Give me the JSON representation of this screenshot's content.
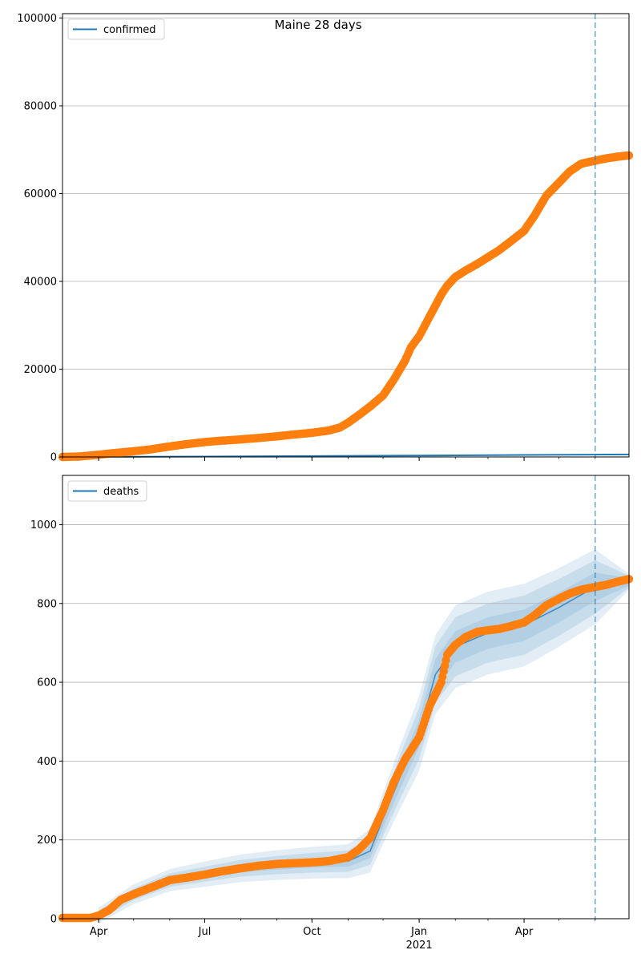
{
  "title": "Maine 28 days",
  "colors": {
    "observed": "#ff7f0e",
    "model": "#1f77b4",
    "band": "#1f77b4",
    "grid": "#b0b0b0",
    "vline": "#1f77b4"
  },
  "x_ticks": [
    {
      "date": "2020-04-01",
      "label": "Apr"
    },
    {
      "date": "2020-07-01",
      "label": "Jul"
    },
    {
      "date": "2020-10-01",
      "label": "Oct"
    },
    {
      "date": "2021-01-01",
      "label": "Jan"
    },
    {
      "date": "2021-04-01",
      "label": "Apr"
    }
  ],
  "x_year_label": "2021",
  "chart_data": [
    {
      "type": "line",
      "legend": [
        "confirmed"
      ],
      "legend_position": "top-left",
      "grid": "y",
      "xlim": [
        "2020-03-01",
        "2021-06-30"
      ],
      "ylim": [
        0,
        101000
      ],
      "yticks": [
        0,
        20000,
        40000,
        60000,
        80000,
        100000
      ],
      "vline": "2021-06-01",
      "series": [
        {
          "name": "confirmed",
          "role": "model",
          "x": [
            "2020-03-01",
            "2020-07-01",
            "2020-10-01",
            "2021-01-01",
            "2021-04-01",
            "2021-06-30"
          ],
          "y": [
            0,
            100,
            200,
            330,
            460,
            560
          ]
        },
        {
          "role": "observed",
          "x": [
            "2020-03-01",
            "2020-03-15",
            "2020-04-01",
            "2020-04-15",
            "2020-05-01",
            "2020-05-15",
            "2020-06-01",
            "2020-06-15",
            "2020-07-01",
            "2020-07-15",
            "2020-08-01",
            "2020-08-15",
            "2020-09-01",
            "2020-09-15",
            "2020-10-01",
            "2020-10-15",
            "2020-10-25",
            "2020-11-01",
            "2020-11-10",
            "2020-11-20",
            "2020-12-01",
            "2020-12-10",
            "2020-12-20",
            "2020-12-25",
            "2021-01-01",
            "2021-01-10",
            "2021-01-20",
            "2021-01-25",
            "2021-02-01",
            "2021-02-10",
            "2021-02-20",
            "2021-03-01",
            "2021-03-10",
            "2021-03-20",
            "2021-04-01",
            "2021-04-10",
            "2021-04-20",
            "2021-05-01",
            "2021-05-10",
            "2021-05-20",
            "2021-06-01",
            "2021-06-10",
            "2021-06-20",
            "2021-06-30"
          ],
          "y": [
            0,
            100,
            500,
            900,
            1300,
            1700,
            2400,
            2900,
            3400,
            3700,
            4000,
            4300,
            4700,
            5100,
            5500,
            6000,
            6700,
            7800,
            9500,
            11500,
            14000,
            17500,
            22000,
            25000,
            27500,
            32000,
            37000,
            39000,
            41000,
            42500,
            44000,
            45500,
            47000,
            49000,
            51500,
            55000,
            59500,
            62500,
            65000,
            66800,
            67500,
            68000,
            68400,
            68700
          ]
        }
      ]
    },
    {
      "type": "line",
      "legend": [
        "deaths"
      ],
      "legend_position": "top-left",
      "grid": "y",
      "xlim": [
        "2020-03-01",
        "2021-06-30"
      ],
      "ylim": [
        0,
        1125
      ],
      "yticks": [
        0,
        200,
        400,
        600,
        800,
        1000
      ],
      "vline": "2021-06-01",
      "bands": {
        "x": [
          "2020-04-01",
          "2020-05-01",
          "2020-06-01",
          "2020-07-01",
          "2020-08-01",
          "2020-09-01",
          "2020-10-01",
          "2020-11-01",
          "2020-11-20",
          "2020-12-01",
          "2020-12-15",
          "2021-01-01",
          "2021-01-15",
          "2021-02-01",
          "2021-03-01",
          "2021-04-01",
          "2021-05-01",
          "2021-06-01",
          "2021-06-30"
        ],
        "center": [
          8,
          62,
          98,
          113,
          128,
          136,
          142,
          146,
          172,
          255,
          355,
          470,
          620,
          690,
          725,
          745,
          790,
          842,
          855
        ],
        "inner": [
          6,
          7,
          8,
          9,
          10,
          11,
          12,
          14,
          18,
          25,
          30,
          35,
          40,
          40,
          40,
          40,
          38,
          36,
          10
        ],
        "middle": [
          12,
          15,
          17,
          19,
          21,
          23,
          25,
          27,
          35,
          45,
          55,
          65,
          72,
          75,
          75,
          75,
          72,
          68,
          15
        ],
        "outer": [
          20,
          25,
          28,
          32,
          35,
          38,
          40,
          43,
          55,
          65,
          80,
          95,
          100,
          105,
          105,
          105,
          100,
          95,
          20
        ]
      },
      "series": [
        {
          "role": "observed",
          "x": [
            "2020-03-01",
            "2020-03-15",
            "2020-03-25",
            "2020-04-01",
            "2020-04-10",
            "2020-04-20",
            "2020-05-01",
            "2020-05-15",
            "2020-06-01",
            "2020-06-15",
            "2020-07-01",
            "2020-07-15",
            "2020-08-01",
            "2020-08-15",
            "2020-09-01",
            "2020-09-15",
            "2020-10-01",
            "2020-10-15",
            "2020-11-01",
            "2020-11-10",
            "2020-11-20",
            "2020-12-01",
            "2020-12-10",
            "2020-12-20",
            "2021-01-01",
            "2021-01-10",
            "2021-01-20",
            "2021-01-25",
            "2021-02-01",
            "2021-02-10",
            "2021-02-20",
            "2021-03-01",
            "2021-03-10",
            "2021-03-20",
            "2021-04-01",
            "2021-04-10",
            "2021-04-20",
            "2021-05-01",
            "2021-05-10",
            "2021-05-20",
            "2021-06-01",
            "2021-06-10",
            "2021-06-20",
            "2021-06-30"
          ],
          "y": [
            2,
            2,
            2,
            8,
            22,
            48,
            62,
            78,
            98,
            104,
            112,
            120,
            128,
            134,
            139,
            141,
            143,
            146,
            156,
            175,
            205,
            275,
            345,
            405,
            460,
            540,
            600,
            670,
            695,
            715,
            728,
            732,
            735,
            742,
            752,
            770,
            795,
            812,
            825,
            835,
            842,
            847,
            855,
            862
          ]
        }
      ]
    }
  ]
}
